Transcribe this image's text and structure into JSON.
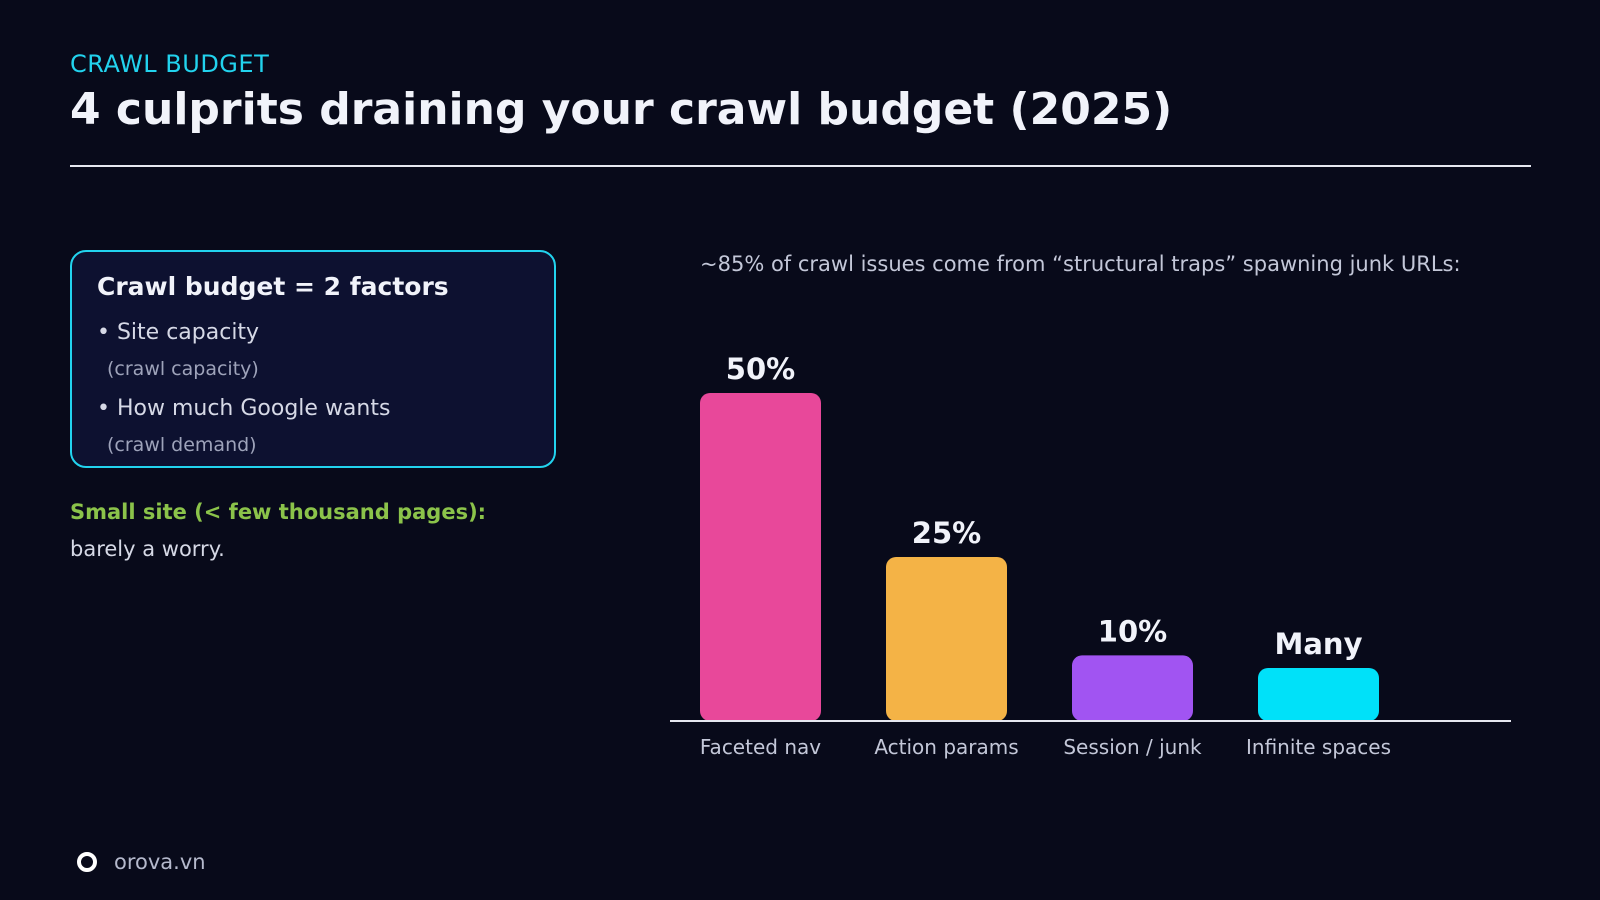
{
  "header": {
    "eyebrow": "CRAWL BUDGET",
    "title": "4 culprits draining your crawl budget (2025)"
  },
  "factor_card": {
    "title": "Crawl budget = 2 factors",
    "items": [
      {
        "label": "• Site capacity",
        "sub": "(crawl capacity)"
      },
      {
        "label": "• How much Google wants",
        "sub": "(crawl demand)"
      }
    ]
  },
  "note": {
    "label": "Small site (< few thousand pages):",
    "text": "barely a worry."
  },
  "chart_caption": "~85% of crawl issues come from “structural traps” spawning junk URLs:",
  "chart_data": {
    "type": "bar",
    "categories": [
      "Faceted nav",
      "Action params",
      "Session / junk",
      "Infinite spaces"
    ],
    "values": [
      50,
      25,
      10,
      null
    ],
    "value_labels": [
      "50%",
      "25%",
      "10%",
      "Many"
    ],
    "colors": [
      "#E8489A",
      "#F4B346",
      "#A154F2",
      "#00E1F9"
    ],
    "ylim": [
      0,
      50
    ],
    "title": "",
    "xlabel": "",
    "ylabel": "",
    "grid": false
  },
  "footer": {
    "brand": "orova.vn",
    "logo_icon": "ring-logo-icon"
  }
}
